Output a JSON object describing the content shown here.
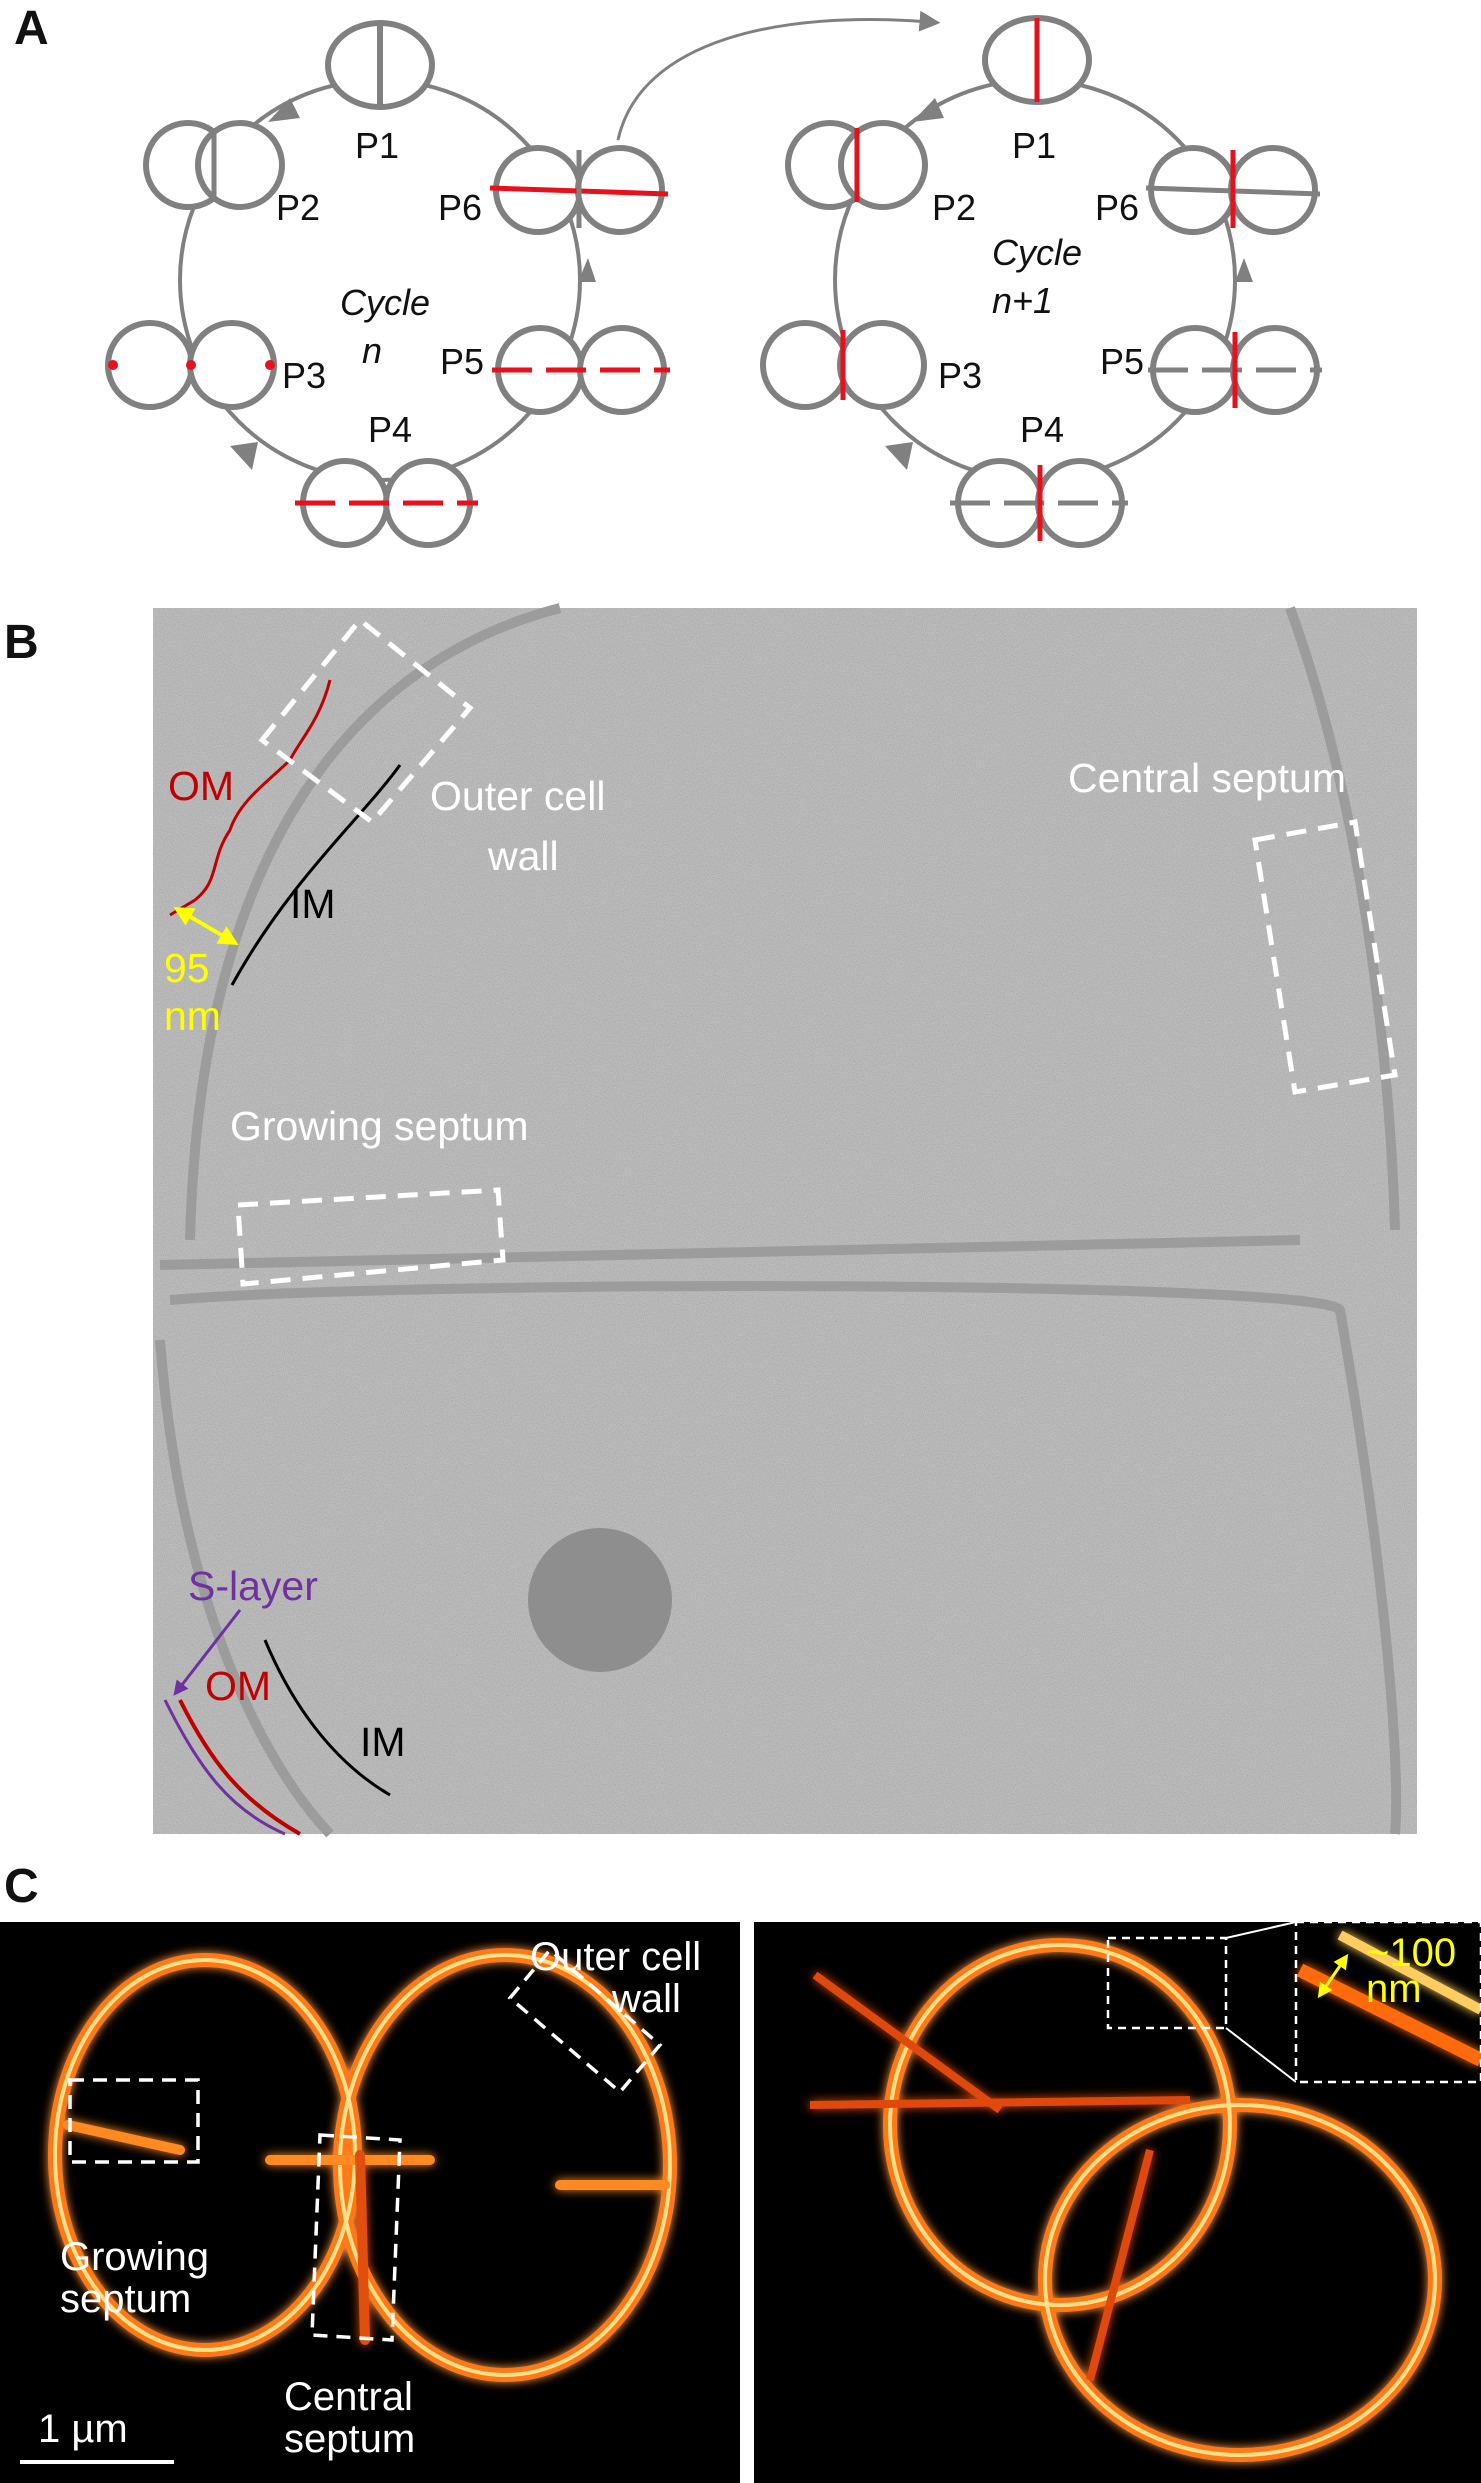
{
  "colors": {
    "cell": "#808080",
    "red": "#e8101a",
    "em_bg": "#b4b4b4",
    "yellow": "#ffff00",
    "purple": "#7030a0",
    "fl_bg": "#000000"
  },
  "panelA": {
    "label": "A",
    "cycle_n": {
      "l1": "Cycle",
      "l2": "n"
    },
    "cycle_n1": {
      "l1": "Cycle",
      "l2": "n+1"
    },
    "phases": {
      "p1": "P1",
      "p2": "P2",
      "p3": "P3",
      "p4": "P4",
      "p5": "P5",
      "p6": "P6"
    }
  },
  "panelB": {
    "label": "B",
    "om": "OM",
    "im": "IM",
    "dim1": "95",
    "dim2": "nm",
    "outer1": "Outer cell",
    "outer2": "wall",
    "central": "Central septum",
    "growing": "Growing septum",
    "slayer": "S-layer"
  },
  "panelC": {
    "label": "C",
    "outer1": "Outer cell",
    "outer2": "wall",
    "growing1": "Growing",
    "growing2": "septum",
    "central1": "Central",
    "central2": "septum",
    "scale": "1 µm",
    "inset1": "~100",
    "inset2": "nm"
  }
}
